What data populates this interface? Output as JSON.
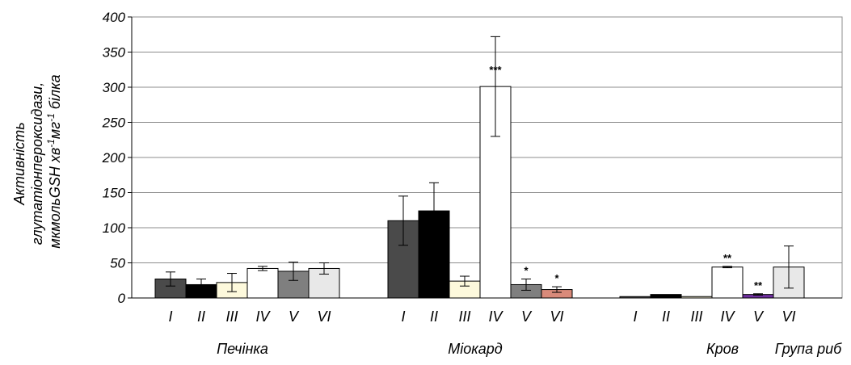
{
  "chart_data": {
    "type": "bar",
    "ylabel_lines": [
      "Активність",
      "глутатіонпероксидази,",
      "мкмольGSH хв",
      "-1",
      "мг",
      "-1",
      " білка"
    ],
    "xlabel": "Група риб",
    "ylim": [
      0,
      400
    ],
    "yticks": [
      "0",
      "50",
      "100",
      "150",
      "200",
      "250",
      "300",
      "350",
      "400"
    ],
    "ytick_values": [
      0,
      50,
      100,
      150,
      200,
      250,
      300,
      350,
      400
    ],
    "grid": true,
    "categories": [
      "I",
      "II",
      "III",
      "IV",
      "V",
      "VI"
    ],
    "series_colors": [
      "#4a4a4a",
      "#000000",
      "#fdf9dc",
      "#ffffff",
      "#7f7f7f",
      "#e8e8e8"
    ],
    "groups": [
      {
        "name": "Печінка",
        "values": [
          27,
          19,
          22,
          42,
          38,
          42
        ],
        "errors": [
          10,
          8,
          13,
          3,
          13,
          8
        ],
        "colors": [
          "#4a4a4a",
          "#000000",
          "#fdf9dc",
          "#ffffff",
          "#7f7f7f",
          "#e8e8e8"
        ],
        "annotations": [
          "",
          "",
          "",
          "",
          "",
          ""
        ]
      },
      {
        "name": "Міокард",
        "values": [
          110,
          124,
          24,
          301,
          19,
          12
        ],
        "errors": [
          35,
          40,
          7,
          71,
          8,
          4
        ],
        "colors": [
          "#4a4a4a",
          "#000000",
          "#fdf9dc",
          "#ffffff",
          "#7f7f7f",
          "#d98a7a"
        ],
        "annotations": [
          "",
          "",
          "",
          "***",
          "*",
          "*"
        ]
      },
      {
        "name": "Кров",
        "values": [
          2,
          5,
          2,
          44,
          5,
          44
        ],
        "errors": [
          0,
          0,
          0,
          1,
          1,
          30
        ],
        "colors": [
          "#4a4a4a",
          "#000000",
          "#fdf9dc",
          "#ffffff",
          "#7030a0",
          "#e8e8e8"
        ],
        "annotations": [
          "",
          "",
          "",
          "**",
          "**",
          ""
        ]
      }
    ]
  }
}
